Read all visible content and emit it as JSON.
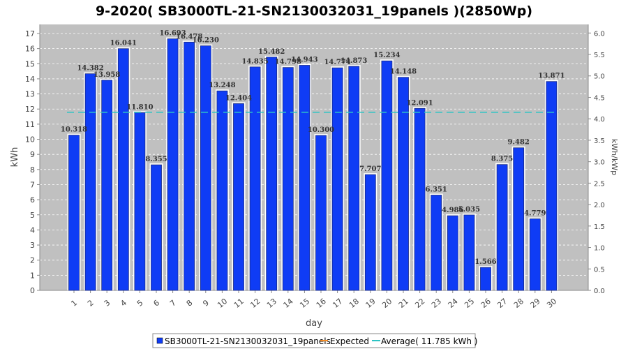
{
  "chart_data": {
    "type": "bar",
    "title": "9-2020( SB3000TL-21-SN2130032031_19panels )(2850Wp)",
    "xlabel": "day",
    "ylabel": "kWh",
    "y2label": "kWh/kWp",
    "ylim": [
      0,
      17.6
    ],
    "y2lim": [
      0,
      6.2
    ],
    "yticks": [
      "0",
      "1",
      "2",
      "3",
      "4",
      "5",
      "6",
      "7",
      "8",
      "9",
      "10",
      "11",
      "12",
      "13",
      "14",
      "15",
      "16",
      "17"
    ],
    "y2ticks": [
      "0.0",
      "0.5",
      "1.0",
      "1.5",
      "2.0",
      "2.5",
      "3.0",
      "3.5",
      "4.0",
      "4.5",
      "5.0",
      "5.5",
      "6.0"
    ],
    "categories": [
      "1",
      "2",
      "3",
      "4",
      "5",
      "6",
      "7",
      "8",
      "9",
      "10",
      "11",
      "12",
      "13",
      "14",
      "15",
      "16",
      "17",
      "18",
      "19",
      "20",
      "21",
      "22",
      "23",
      "24",
      "25",
      "26",
      "27",
      "28",
      "29",
      "30"
    ],
    "series": [
      {
        "name": "SB3000TL-21-SN2130032031_19panels",
        "values": [
          10.318,
          14.382,
          13.958,
          16.041,
          11.81,
          8.355,
          16.693,
          16.478,
          16.23,
          13.248,
          12.404,
          14.835,
          15.482,
          14.798,
          14.943,
          10.3,
          14.774,
          14.873,
          7.707,
          15.234,
          14.148,
          12.091,
          6.351,
          4.986,
          5.035,
          1.566,
          8.375,
          9.482,
          4.779,
          13.871
        ],
        "labels": [
          "10.318",
          "14.382",
          "13.958",
          "16.041",
          "11.810",
          "8.355",
          "16.693",
          "16.478",
          "16.230",
          "13.248",
          "12.404",
          "14.835",
          "15.482",
          "14.798",
          "14.943",
          "10.300",
          "14.774",
          "14.873",
          "7.707",
          "15.234",
          "14.148",
          "12.091",
          "6.351",
          "4.986",
          "5.035",
          "1.566",
          "8.375",
          "9.482",
          "4.779",
          "13.871"
        ],
        "color": "#0f3cf5"
      }
    ],
    "average": 11.785,
    "legend": [
      {
        "name": "SB3000TL-21-SN2130032031_19panels",
        "color": "#0f3cf5",
        "kind": "box"
      },
      {
        "name": "Expected",
        "color": "#f08a24",
        "kind": "line"
      },
      {
        "name": "Average( 11.785 kWh )",
        "color": "#2ec4c4",
        "kind": "line"
      }
    ],
    "legend_position": "bottom",
    "grid": true
  }
}
